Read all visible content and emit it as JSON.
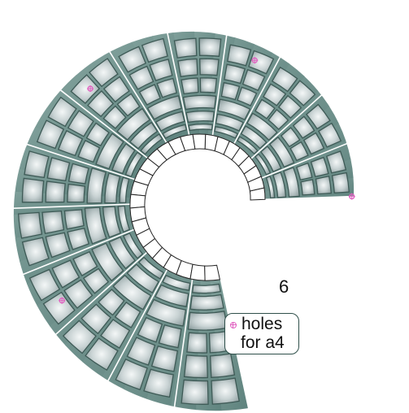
{
  "page_number": "6",
  "legend": {
    "line1": "holes",
    "line2": "for a4",
    "marker_icon": "hole-marker-icon"
  },
  "colors": {
    "band": "#6d918c",
    "tile_edge": "#3e5a56",
    "tile_light": "#f2f5f5",
    "tile_dark": "#8f9fa0",
    "hole": "#e060c0"
  }
}
